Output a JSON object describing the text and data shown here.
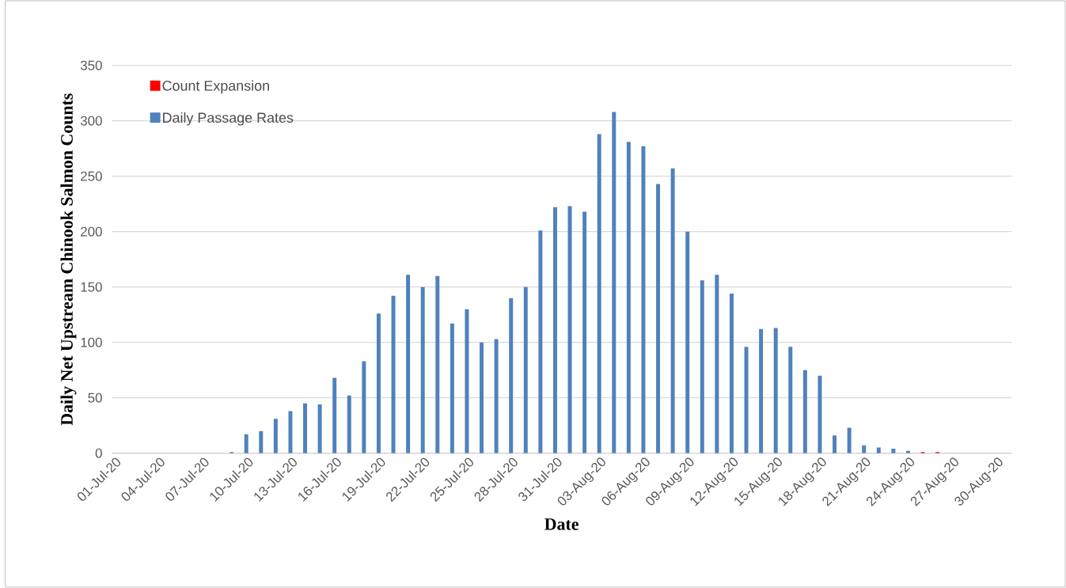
{
  "chart_data": {
    "type": "bar",
    "xlabel": "Date",
    "ylabel": "Daily Net Upstream Chinook Salmon Counts",
    "categories": [
      "01-Jul-20",
      null,
      null,
      "04-Jul-20",
      null,
      null,
      "07-Jul-20",
      null,
      null,
      "10-Jul-20",
      null,
      null,
      "13-Jul-20",
      null,
      null,
      "16-Jul-20",
      null,
      null,
      "19-Jul-20",
      null,
      null,
      "22-Jul-20",
      null,
      null,
      "25-Jul-20",
      null,
      null,
      "28-Jul-20",
      null,
      null,
      "31-Jul-20",
      null,
      null,
      "03-Aug-20",
      null,
      null,
      "06-Aug-20",
      null,
      null,
      "09-Aug-20",
      null,
      null,
      "12-Aug-20",
      null,
      null,
      "15-Aug-20",
      null,
      null,
      "18-Aug-20",
      null,
      null,
      "21-Aug-20",
      null,
      null,
      "24-Aug-20",
      null,
      null,
      "27-Aug-20",
      null,
      null,
      "30-Aug-20"
    ],
    "series": [
      {
        "name": "Daily Passage Rates",
        "color": "#4f81bd",
        "values": [
          0,
          0,
          0,
          0,
          0,
          0,
          0,
          0,
          1,
          17,
          20,
          31,
          38,
          45,
          44,
          68,
          52,
          83,
          126,
          142,
          161,
          150,
          160,
          117,
          130,
          100,
          103,
          140,
          150,
          201,
          222,
          223,
          218,
          288,
          308,
          281,
          277,
          243,
          257,
          200,
          156,
          161,
          144,
          96,
          112,
          113,
          96,
          75,
          70,
          16,
          23,
          7,
          5,
          4,
          2,
          0,
          0,
          0,
          0,
          0,
          0
        ]
      },
      {
        "name": "Count Expansion",
        "color": "#ff0000",
        "values": [
          0,
          0,
          0,
          0,
          0,
          0,
          0,
          0,
          0,
          0,
          0,
          0,
          0,
          0,
          0,
          0,
          0,
          0,
          0,
          0,
          0,
          0,
          0,
          0,
          0,
          0,
          0,
          0,
          0,
          0,
          0,
          0,
          0,
          0,
          0,
          0,
          0,
          0,
          0,
          0,
          0,
          0,
          0,
          0,
          0,
          0,
          0,
          0,
          0,
          0,
          0,
          0,
          0,
          0,
          0,
          1,
          1,
          0,
          0,
          0,
          0
        ]
      }
    ],
    "stacked": true,
    "ylim": [
      0,
      350
    ],
    "yticks": [
      0,
      50,
      100,
      150,
      200,
      250,
      300,
      350
    ],
    "grid": "y",
    "legend": "top left"
  }
}
